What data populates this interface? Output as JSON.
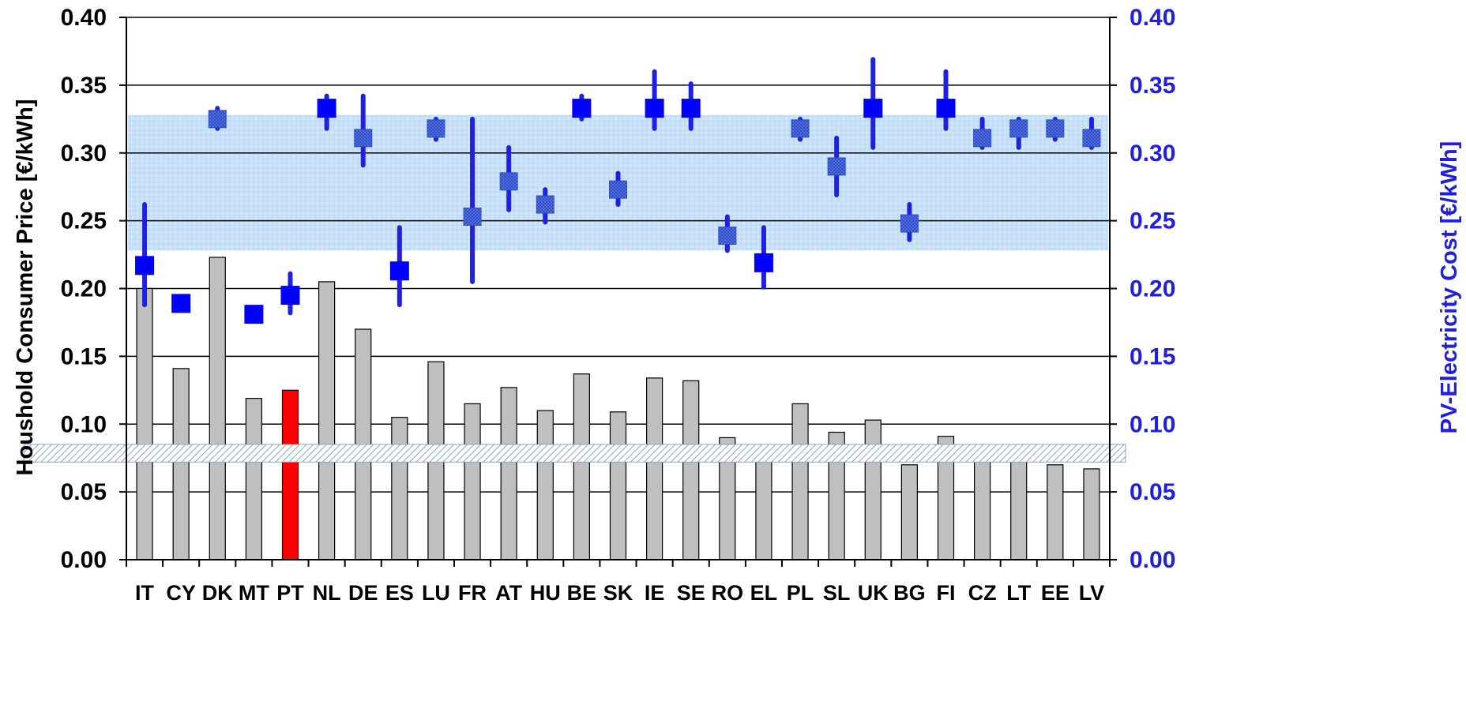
{
  "chart_data": {
    "type": "bar",
    "ylabel": "Houshold Consumer Price [€/kWh]",
    "y2label": "PV-Electricity Cost [€/kWh]",
    "ylim": [
      0,
      0.4
    ],
    "y2lim": [
      0,
      0.4
    ],
    "yticks": [
      "0.00",
      "0.05",
      "0.10",
      "0.15",
      "0.20",
      "0.25",
      "0.30",
      "0.35",
      "0.40"
    ],
    "grid": "horizontal",
    "categories": [
      "IT",
      "CY",
      "DK",
      "MT",
      "PT",
      "NL",
      "DE",
      "ES",
      "LU",
      "FR",
      "AT",
      "HU",
      "BE",
      "SK",
      "IE",
      "SE",
      "RO",
      "EL",
      "PL",
      "SL",
      "UK",
      "BG",
      "FI",
      "CZ",
      "LT",
      "EE",
      "LV"
    ],
    "series": [
      {
        "kind": "bar",
        "axis": "left",
        "values": [
          0.2,
          0.141,
          0.223,
          0.119,
          0.125,
          0.205,
          0.17,
          0.105,
          0.146,
          0.115,
          0.127,
          0.11,
          0.137,
          0.109,
          0.134,
          0.132,
          0.09,
          0.081,
          0.115,
          0.094,
          0.103,
          0.07,
          0.091,
          0.078,
          0.074,
          0.07,
          0.067
        ],
        "colors": [
          "#bfbfbf",
          "#bfbfbf",
          "#bfbfbf",
          "#bfbfbf",
          "#ff0000",
          "#bfbfbf",
          "#bfbfbf",
          "#bfbfbf",
          "#bfbfbf",
          "#bfbfbf",
          "#bfbfbf",
          "#bfbfbf",
          "#bfbfbf",
          "#bfbfbf",
          "#bfbfbf",
          "#bfbfbf",
          "#bfbfbf",
          "#bfbfbf",
          "#bfbfbf",
          "#bfbfbf",
          "#bfbfbf",
          "#bfbfbf",
          "#bfbfbf",
          "#bfbfbf",
          "#bfbfbf",
          "#bfbfbf",
          "#bfbfbf"
        ]
      },
      {
        "kind": "point-range",
        "axis": "right",
        "values": [
          0.217,
          0.189,
          0.325,
          0.181,
          0.195,
          0.333,
          0.311,
          0.213,
          0.318,
          0.253,
          0.279,
          0.262,
          0.333,
          0.273,
          0.333,
          0.333,
          0.239,
          0.219,
          0.318,
          0.29,
          0.333,
          0.248,
          0.333,
          0.311,
          0.318,
          0.318,
          0.311
        ],
        "low": [
          0.188,
          0.189,
          0.318,
          0.181,
          0.182,
          0.318,
          0.291,
          0.188,
          0.31,
          0.205,
          0.258,
          0.249,
          0.325,
          0.262,
          0.318,
          0.318,
          0.228,
          0.201,
          0.31,
          0.269,
          0.304,
          0.236,
          0.318,
          0.304,
          0.304,
          0.31,
          0.304
        ],
        "high": [
          0.262,
          0.189,
          0.333,
          0.181,
          0.211,
          0.342,
          0.342,
          0.245,
          0.325,
          0.325,
          0.304,
          0.273,
          0.342,
          0.285,
          0.36,
          0.351,
          0.253,
          0.245,
          0.325,
          0.311,
          0.369,
          0.262,
          0.36,
          0.325,
          0.325,
          0.325,
          0.325
        ],
        "marker_style": [
          "solid",
          "solid",
          "hatched",
          "solid",
          "solid",
          "solid",
          "hatched",
          "solid",
          "hatched",
          "hatched",
          "hatched",
          "hatched",
          "solid",
          "hatched",
          "solid",
          "solid",
          "hatched",
          "solid",
          "hatched",
          "hatched",
          "solid",
          "hatched",
          "solid",
          "hatched",
          "hatched",
          "hatched",
          "hatched"
        ],
        "marker_color": "#0000ff",
        "range_color": "#2020e0"
      }
    ],
    "band": {
      "from": 0.228,
      "to": 0.328,
      "color": "#cfe5fa"
    },
    "reference_band": {
      "from": 0.072,
      "to": 0.085
    },
    "colors": {
      "bar": "#bfbfbf",
      "highlight_bar": "#ff0000",
      "marker": "#0000ff",
      "right_axis_text": "#1f1fe0"
    }
  }
}
